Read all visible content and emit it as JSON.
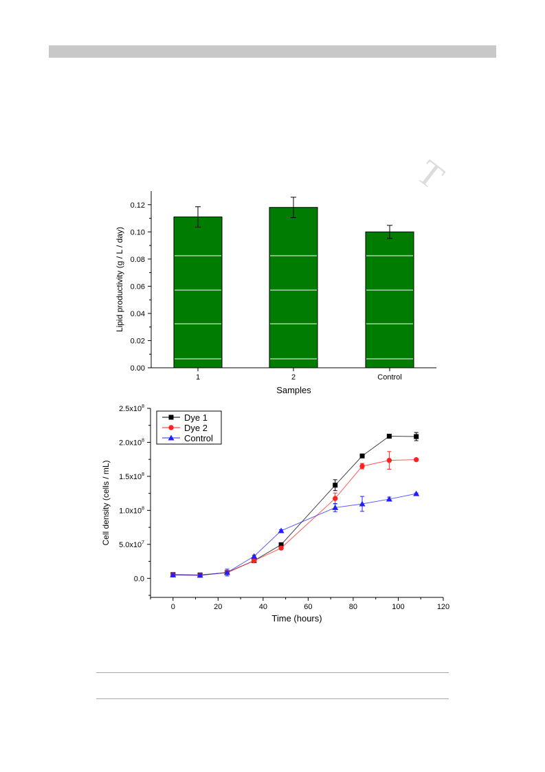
{
  "watermark": "T",
  "chart_data": [
    {
      "type": "bar",
      "categories": [
        "1",
        "2",
        "Control"
      ],
      "values": [
        0.111,
        0.118,
        0.1
      ],
      "errors": [
        0.0075,
        0.0075,
        0.0048
      ],
      "xlabel": "Samples",
      "ylabel": "Lipid productivity (g / L / day)",
      "ylim": [
        0,
        0.13
      ],
      "yticks": [
        "0.00",
        "0.02",
        "0.04",
        "0.06",
        "0.08",
        "0.10",
        "0.12"
      ],
      "bar_color": "#007c00",
      "grid": false
    },
    {
      "type": "line",
      "xlabel": "Time (hours)",
      "ylabel": "Cell density (cells / mL)",
      "xlim": [
        -10,
        120
      ],
      "ylim": [
        -28000000,
        250000000
      ],
      "xticks": [
        "0",
        "20",
        "40",
        "60",
        "80",
        "100",
        "120"
      ],
      "yticks": [
        {
          "value": 0,
          "mantissa": "0.0",
          "exp": ""
        },
        {
          "value": 50000000,
          "mantissa": "5.0x10",
          "exp": "7"
        },
        {
          "value": 100000000,
          "mantissa": "1.0x10",
          "exp": "8"
        },
        {
          "value": 150000000,
          "mantissa": "1.5x10",
          "exp": "8"
        },
        {
          "value": 200000000,
          "mantissa": "2.0x10",
          "exp": "8"
        },
        {
          "value": 250000000,
          "mantissa": "2.5x10",
          "exp": "8"
        }
      ],
      "legend_position": "top-left",
      "series": [
        {
          "name": "Dye 1",
          "color": "#000000",
          "marker": "square",
          "x": [
            0,
            12,
            24,
            36,
            48,
            72,
            84,
            96,
            108
          ],
          "y": [
            5500000,
            5000000,
            8500000,
            26000000,
            49500000,
            137000000,
            180000000,
            209000000,
            208500000
          ],
          "err": [
            1500000,
            1200000,
            2500000,
            1500000,
            2000000,
            8000000,
            1500000,
            1000000,
            6000000
          ]
        },
        {
          "name": "Dye 2",
          "color": "#ff2020",
          "marker": "circle",
          "x": [
            0,
            12,
            24,
            36,
            48,
            72,
            84,
            96,
            108
          ],
          "y": [
            5000000,
            4500000,
            8500000,
            26000000,
            44500000,
            117500000,
            165000000,
            173500000,
            174500000
          ],
          "err": [
            1500000,
            1200000,
            2500000,
            1500000,
            2000000,
            8000000,
            4000000,
            13000000,
            1000000
          ]
        },
        {
          "name": "Control",
          "color": "#2020ff",
          "marker": "triangle",
          "x": [
            0,
            12,
            24,
            36,
            48,
            72,
            84,
            96,
            108
          ],
          "y": [
            5000000,
            4500000,
            8500000,
            32500000,
            70000000,
            104000000,
            109500000,
            116500000,
            124500000
          ],
          "err": [
            1500000,
            1200000,
            5000000,
            1500000,
            1500000,
            6000000,
            11000000,
            3000000,
            1000000
          ]
        }
      ]
    }
  ]
}
